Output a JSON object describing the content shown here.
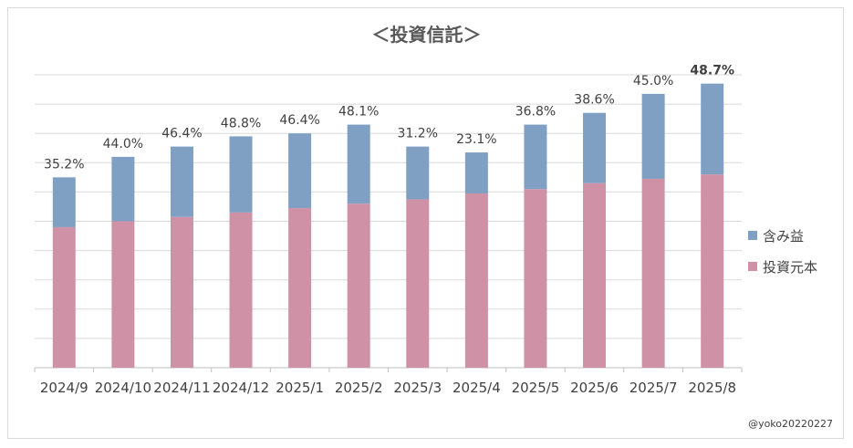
{
  "chart_data": {
    "type": "bar",
    "stacked": true,
    "title": "＜投資信託＞",
    "categories": [
      "2024/9",
      "2024/10",
      "2024/11",
      "2024/12",
      "2025/1",
      "2025/2",
      "2025/3",
      "2025/4",
      "2025/5",
      "2025/6",
      "2025/7",
      "2025/8"
    ],
    "series": [
      {
        "name": "投資元本",
        "color": "#cf91a6",
        "values": [
          48,
          50,
          51.5,
          53,
          54.5,
          56,
          57.5,
          59.5,
          61,
          63,
          64.5,
          66
        ]
      },
      {
        "name": "含み益",
        "color": "#7f9fc3",
        "values": [
          17,
          22,
          24,
          26,
          25.5,
          27,
          18,
          14,
          22,
          24,
          29,
          31
        ]
      }
    ],
    "data_labels": [
      "35.2%",
      "44.0%",
      "46.4%",
      "48.8%",
      "46.4%",
      "48.1%",
      "31.2%",
      "23.1%",
      "36.8%",
      "38.6%",
      "45.0%",
      "48.7%"
    ],
    "highlight_label_index": 11,
    "ylim": [
      0,
      100
    ],
    "grid": true,
    "legend_position": "right",
    "credit": "@yoko20220227"
  }
}
